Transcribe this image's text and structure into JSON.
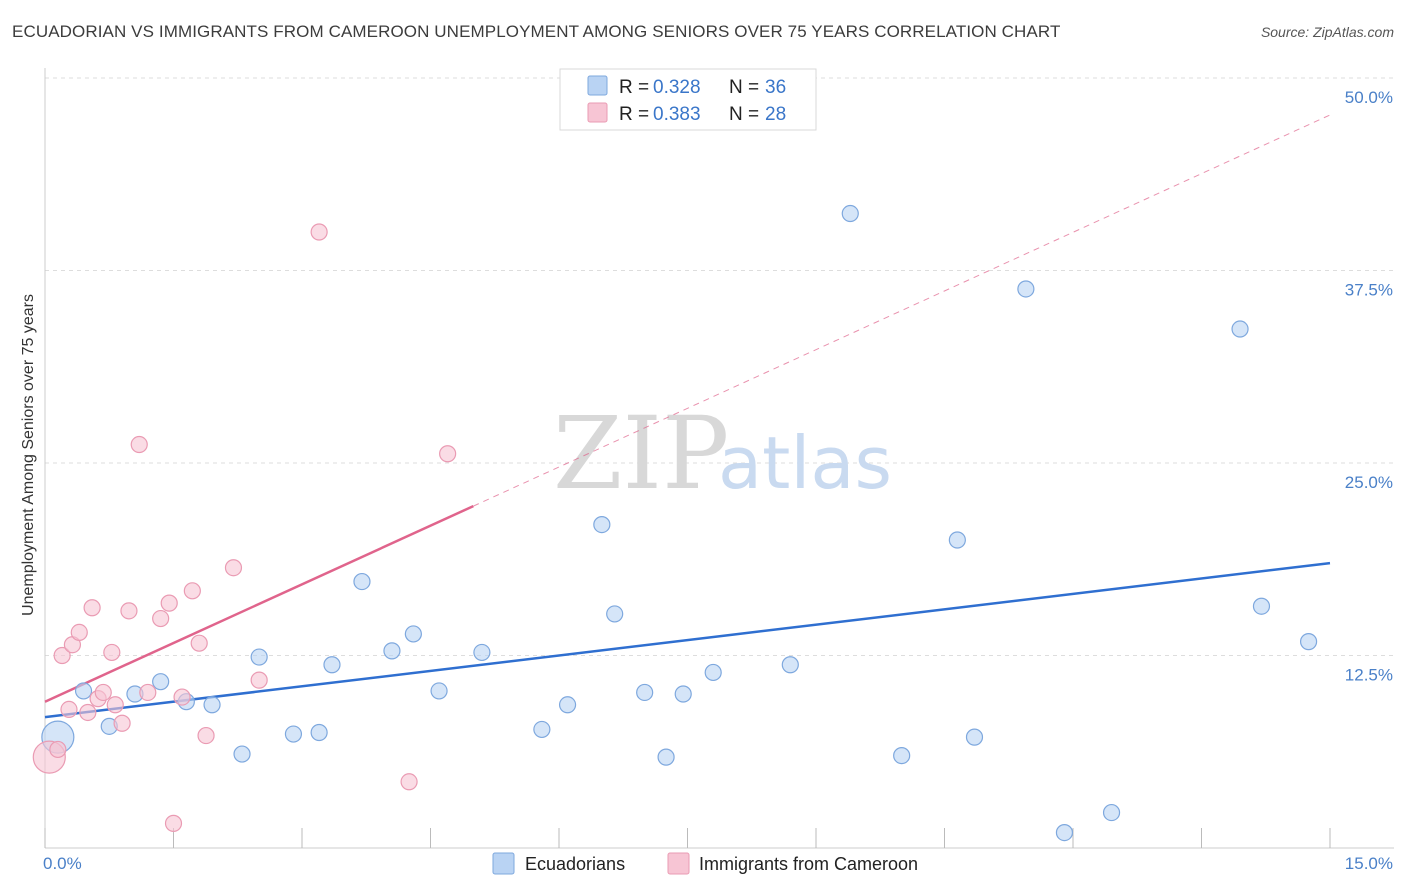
{
  "title": "ECUADORIAN VS IMMIGRANTS FROM CAMEROON UNEMPLOYMENT AMONG SENIORS OVER 75 YEARS CORRELATION CHART",
  "source": "Source: ZipAtlas.com",
  "watermark": {
    "zip": "ZIP",
    "atlas": "atlas"
  },
  "colors": {
    "blue_fill": "#b9d3f3",
    "blue_stroke": "#7ea8de",
    "blue_line": "#2f6fd0",
    "pink_fill": "#f7c5d4",
    "pink_stroke": "#ea9bb3",
    "pink_line": "#e0648c",
    "grid": "#dddddd"
  },
  "chart_data": {
    "type": "scatter",
    "xlabel": "",
    "ylabel": "Unemployment Among Seniors over 75 years",
    "xlim": [
      0,
      15
    ],
    "ylim": [
      0,
      50
    ],
    "x_tick_labels": [
      {
        "value": 0,
        "label": "0.0%"
      },
      {
        "value": 15,
        "label": "15.0%"
      }
    ],
    "y_tick_labels": [
      {
        "value": 12.5,
        "label": "12.5%"
      },
      {
        "value": 25,
        "label": "25.0%"
      },
      {
        "value": 37.5,
        "label": "37.5%"
      },
      {
        "value": 50,
        "label": "50.0%"
      }
    ],
    "legend": [
      {
        "series": "Ecuadorians",
        "r_label": "R =",
        "r": "0.328",
        "n_label": "N =",
        "n": "36"
      },
      {
        "series": "Immigrants from Cameroon",
        "r_label": "R =",
        "r": "0.383",
        "n_label": "N =",
        "n": "28"
      }
    ],
    "series": [
      {
        "name": "Ecuadorians",
        "color": "blue",
        "points": [
          {
            "x": 0.15,
            "y": 7.2,
            "big": true
          },
          {
            "x": 0.45,
            "y": 10.2
          },
          {
            "x": 0.75,
            "y": 7.9
          },
          {
            "x": 1.05,
            "y": 10.0
          },
          {
            "x": 1.35,
            "y": 10.8
          },
          {
            "x": 1.65,
            "y": 9.5
          },
          {
            "x": 1.95,
            "y": 9.3
          },
          {
            "x": 2.3,
            "y": 6.1
          },
          {
            "x": 2.5,
            "y": 12.4
          },
          {
            "x": 2.9,
            "y": 7.4
          },
          {
            "x": 3.2,
            "y": 7.5
          },
          {
            "x": 3.35,
            "y": 11.9
          },
          {
            "x": 3.7,
            "y": 17.3
          },
          {
            "x": 4.05,
            "y": 12.8
          },
          {
            "x": 4.3,
            "y": 13.9
          },
          {
            "x": 4.6,
            "y": 10.2
          },
          {
            "x": 5.1,
            "y": 12.7
          },
          {
            "x": 5.8,
            "y": 7.7
          },
          {
            "x": 6.1,
            "y": 9.3
          },
          {
            "x": 6.5,
            "y": 21.0
          },
          {
            "x": 6.65,
            "y": 15.2
          },
          {
            "x": 7.0,
            "y": 10.1
          },
          {
            "x": 7.25,
            "y": 5.9
          },
          {
            "x": 7.45,
            "y": 10.0
          },
          {
            "x": 7.8,
            "y": 11.4
          },
          {
            "x": 8.7,
            "y": 11.9
          },
          {
            "x": 9.4,
            "y": 41.2
          },
          {
            "x": 10.0,
            "y": 6.0
          },
          {
            "x": 10.65,
            "y": 20.0
          },
          {
            "x": 10.85,
            "y": 7.2
          },
          {
            "x": 11.45,
            "y": 36.3
          },
          {
            "x": 11.9,
            "y": 1.0
          },
          {
            "x": 12.45,
            "y": 2.3
          },
          {
            "x": 13.95,
            "y": 33.7
          },
          {
            "x": 14.2,
            "y": 15.7
          },
          {
            "x": 14.75,
            "y": 13.4
          }
        ],
        "trendline": {
          "x0": 0,
          "y0": 8.5,
          "x1": 15,
          "y1": 18.5
        }
      },
      {
        "name": "Immigrants from Cameroon",
        "color": "pink",
        "points": [
          {
            "x": 0.05,
            "y": 5.9,
            "big": true
          },
          {
            "x": 0.15,
            "y": 6.4
          },
          {
            "x": 0.2,
            "y": 12.5
          },
          {
            "x": 0.28,
            "y": 9.0
          },
          {
            "x": 0.32,
            "y": 13.2
          },
          {
            "x": 0.4,
            "y": 14.0
          },
          {
            "x": 0.5,
            "y": 8.8
          },
          {
            "x": 0.55,
            "y": 15.6
          },
          {
            "x": 0.62,
            "y": 9.7
          },
          {
            "x": 0.68,
            "y": 10.1
          },
          {
            "x": 0.78,
            "y": 12.7
          },
          {
            "x": 0.82,
            "y": 9.3
          },
          {
            "x": 0.9,
            "y": 8.1
          },
          {
            "x": 0.98,
            "y": 15.4
          },
          {
            "x": 1.1,
            "y": 26.2
          },
          {
            "x": 1.2,
            "y": 10.1
          },
          {
            "x": 1.35,
            "y": 14.9
          },
          {
            "x": 1.45,
            "y": 15.9
          },
          {
            "x": 1.5,
            "y": 1.6
          },
          {
            "x": 1.6,
            "y": 9.8
          },
          {
            "x": 1.72,
            "y": 16.7
          },
          {
            "x": 1.8,
            "y": 13.3
          },
          {
            "x": 1.88,
            "y": 7.3
          },
          {
            "x": 2.2,
            "y": 18.2
          },
          {
            "x": 2.5,
            "y": 10.9
          },
          {
            "x": 3.2,
            "y": 40.0
          },
          {
            "x": 4.25,
            "y": 4.3
          },
          {
            "x": 4.7,
            "y": 25.6
          }
        ],
        "trendline": {
          "x0": 0,
          "y0": 9.5,
          "x1": 5.0,
          "y1": 22.2
        },
        "trendline_dashed_extension": {
          "x0": 5.0,
          "y0": 22.2,
          "x1": 15,
          "y1": 47.6
        }
      }
    ]
  }
}
